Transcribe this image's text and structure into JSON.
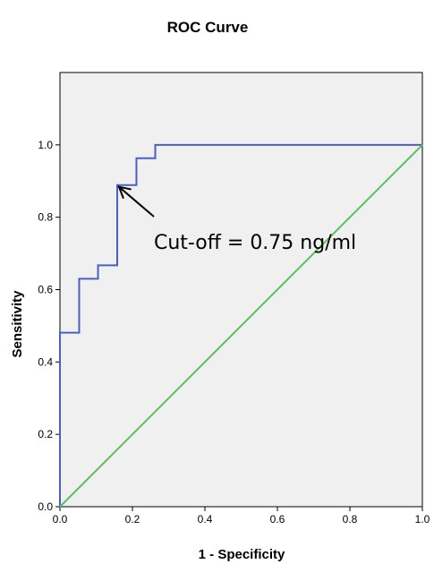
{
  "chart_data": {
    "type": "line",
    "title": "ROC Curve",
    "xlabel": "1 - Specificity",
    "ylabel": "Sensitivity",
    "xlim": [
      0,
      1
    ],
    "ylim": [
      0,
      1.2
    ],
    "x_ticks": [
      "0.0",
      "0.2",
      "0.4",
      "0.6",
      "0.8",
      "1.0"
    ],
    "y_ticks": [
      "0.0",
      "0.2",
      "0.4",
      "0.6",
      "0.8",
      "1.0"
    ],
    "x_tick_values": [
      0,
      0.2,
      0.4,
      0.6,
      0.8,
      1.0
    ],
    "y_tick_values": [
      0,
      0.2,
      0.4,
      0.6,
      0.8,
      1.0
    ],
    "grid": false,
    "plot_background": "#f0f0f0",
    "series": [
      {
        "color": "#4a5fc1",
        "step": true,
        "x": [
          0,
          0,
          0.053,
          0.053,
          0.105,
          0.105,
          0.158,
          0.158,
          0.211,
          0.211,
          0.263,
          0.263,
          1.0
        ],
        "y": [
          0,
          0.481,
          0.481,
          0.63,
          0.63,
          0.667,
          0.667,
          0.889,
          0.889,
          0.963,
          0.963,
          1.0,
          1.0
        ]
      },
      {
        "color": "#5cbf5c",
        "x": [
          0,
          1
        ],
        "y": [
          0,
          1
        ]
      }
    ],
    "annotations": [
      {
        "text": "Cut-off = 0.75 ng/ml",
        "arrow_to": [
          0.158,
          0.889
        ]
      }
    ]
  }
}
